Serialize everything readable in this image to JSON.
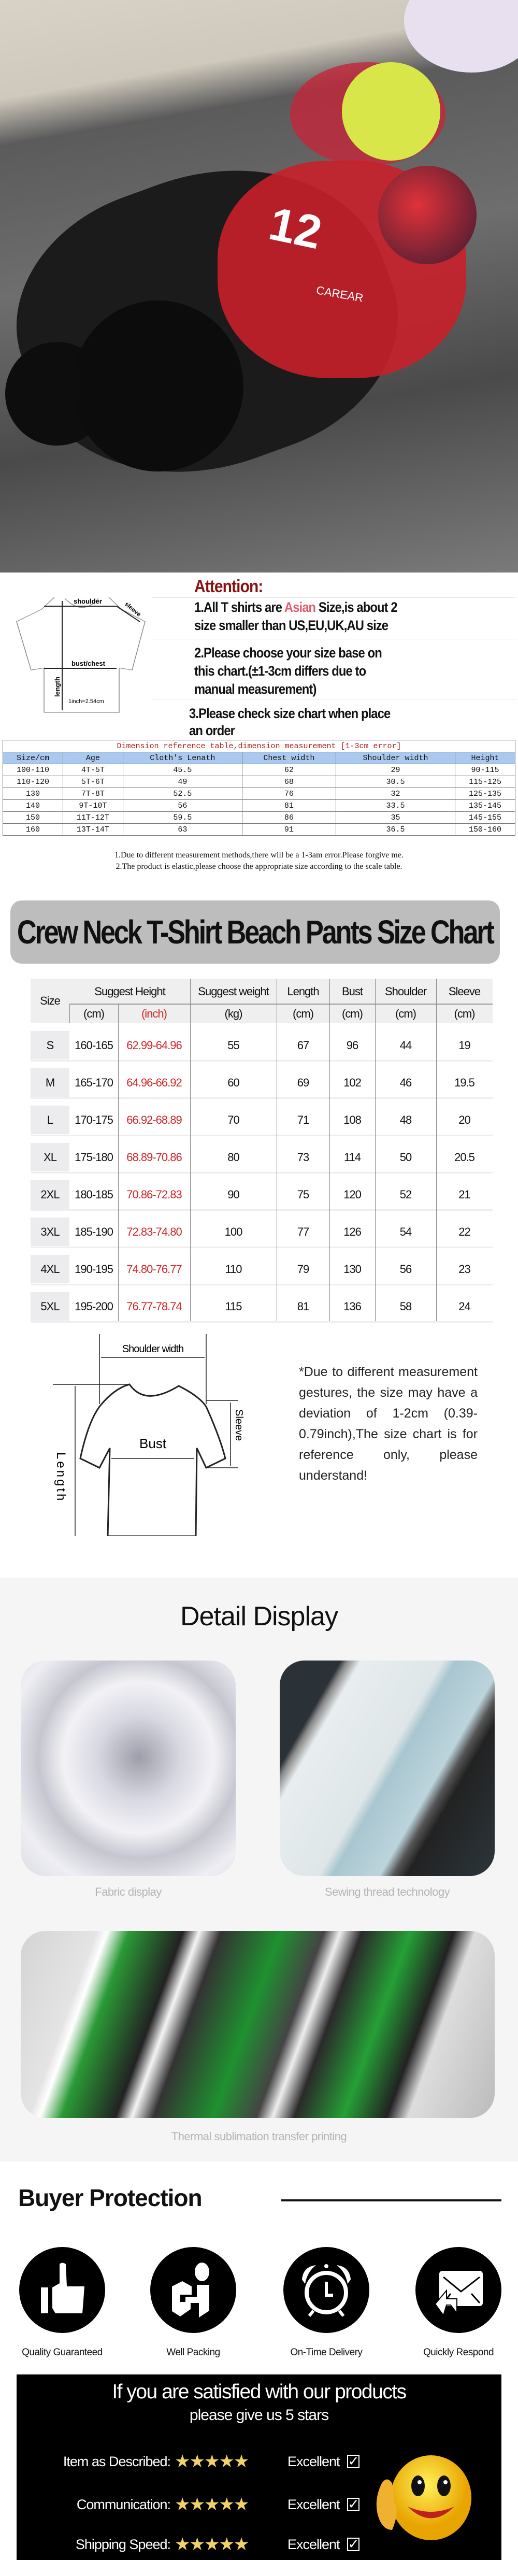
{
  "hero": {
    "rider_number": "12",
    "sponsor": "CAREAR"
  },
  "attention": {
    "title": "Attention:",
    "line1_pre": "1.All T shirts are ",
    "line1_highlight": "Asian",
    "line1_post": " Size,is about 2",
    "line1b": "size smaller than US,EU,UK,AU size",
    "line2a": "2.Please choose your size base on",
    "line2b": "this chart.(±1-3cm differs due to",
    "line2c": "manual measurement)",
    "line3a": "3.Please check size chart when place",
    "line3b": "an order",
    "highlight_color": "#e06070",
    "diagram": {
      "shoulder": "shoulder",
      "sleeve": "sleeve",
      "bust": "bust/chest",
      "length": "length",
      "inch": "1inch=2.54cm"
    }
  },
  "dimension_table": {
    "title": "Dimension reference table,dimension measurement [1-3cm error]",
    "headers": [
      "Size/cm",
      "Age",
      "Cloth's Lenath",
      "Chest width",
      "Shoulder width",
      "Height"
    ],
    "rows": [
      [
        "100-110",
        "4T-5T",
        "45.5",
        "62",
        "29",
        "90-115"
      ],
      [
        "110-120",
        "5T-6T",
        "49",
        "68",
        "30.5",
        "115-125"
      ],
      [
        "130",
        "7T-8T",
        "52.5",
        "76",
        "32",
        "125-135"
      ],
      [
        "140",
        "9T-10T",
        "56",
        "81",
        "33.5",
        "135-145"
      ],
      [
        "150",
        "11T-12T",
        "59.5",
        "86",
        "35",
        "145-155"
      ],
      [
        "160",
        "13T-14T",
        "63",
        "91",
        "36.5",
        "150-160"
      ]
    ],
    "notes": [
      "1.Due to different measurement methods,there will be a 1-3am error.Please forgive me.",
      "2.The product is elastic,please choose the appropriate size according to the scale table."
    ]
  },
  "size_chart": {
    "title": "Crew Neck T-Shirt Beach Pants Size Chart",
    "header_size": "Size",
    "header_height": "Suggest Height",
    "header_weight": "Suggest weight",
    "header_length": "Length",
    "header_bust": "Bust",
    "header_shoulder": "Shoulder",
    "header_sleeve": "Sleeve",
    "units": [
      "(cm)",
      "(inch)",
      "(kg)",
      "(cm)",
      "(cm)",
      "(cm)",
      "(cm)"
    ],
    "rows": [
      [
        "S",
        "160-165",
        "62.99-64.96",
        "55",
        "67",
        "96",
        "44",
        "19"
      ],
      [
        "M",
        "165-170",
        "64.96-66.92",
        "60",
        "69",
        "102",
        "46",
        "19.5"
      ],
      [
        "L",
        "170-175",
        "66.92-68.89",
        "70",
        "71",
        "108",
        "48",
        "20"
      ],
      [
        "XL",
        "175-180",
        "68.89-70.86",
        "80",
        "73",
        "114",
        "50",
        "20.5"
      ],
      [
        "2XL",
        "180-185",
        "70.86-72.83",
        "90",
        "75",
        "120",
        "52",
        "21"
      ],
      [
        "3XL",
        "185-190",
        "72.83-74.80",
        "100",
        "77",
        "126",
        "54",
        "22"
      ],
      [
        "4XL",
        "190-195",
        "74.80-76.77",
        "110",
        "79",
        "130",
        "56",
        "23"
      ],
      [
        "5XL",
        "195-200",
        "76.77-78.74",
        "115",
        "81",
        "136",
        "58",
        "24"
      ]
    ],
    "inch_color": "#d0262a",
    "diagram": {
      "shoulder": "Shoulder width",
      "bust": "Bust",
      "sleeve": "Sleeve",
      "length": "Length"
    },
    "note": "*Due to different measurement gestures, the size may have a deviation of 1-2cm (0.39-0.79inch),The size chart is for reference only, please understand!"
  },
  "detail": {
    "title": "Detail Display",
    "captions": [
      "Fabric display",
      "Sewing thread technology",
      "Thermal sublimation transfer printing"
    ]
  },
  "buyer": {
    "title": "Buyer Protection",
    "items": [
      {
        "label": "Quality Guaranteed",
        "icon": "thumbs-up-icon"
      },
      {
        "label": "Well Packing",
        "icon": "package-icon"
      },
      {
        "label": "On-Time Delivery",
        "icon": "alarm-clock-icon"
      },
      {
        "label": "Quickly Respond",
        "icon": "mail-reply-icon"
      }
    ],
    "banner_line1": "If you are satisfied with our products",
    "banner_line2": "please give us 5 stars",
    "ratings": [
      {
        "label": "Item as Described:",
        "stars": 5,
        "value": "Excellent"
      },
      {
        "label": "Communication:",
        "stars": 5,
        "value": "Excellent"
      },
      {
        "label": "Shipping Speed:",
        "stars": 5,
        "value": "Excellent"
      }
    ],
    "star_color": "#f1d267"
  }
}
